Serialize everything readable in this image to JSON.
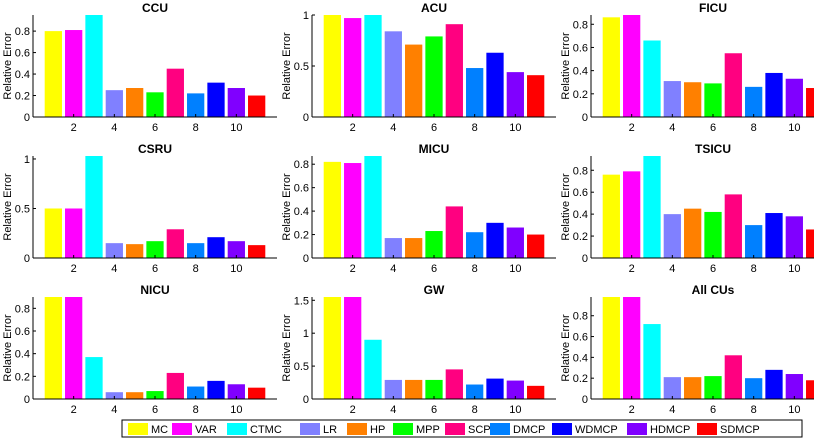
{
  "chart_data": {
    "type": "bar",
    "ylabel": "Relative Error",
    "categories": [
      "MC",
      "VAR",
      "CTMC",
      "LR",
      "HP",
      "MPP",
      "SCP",
      "DMCP",
      "WDMCP",
      "HDMCP",
      "SDMCP"
    ],
    "colors": [
      "#ffff00",
      "#ff00ff",
      "#00ffff",
      "#8080ff",
      "#ff8000",
      "#00ff00",
      "#ff0080",
      "#0080ff",
      "#0000ff",
      "#8000ff",
      "#ff0000"
    ],
    "x_tick_labels": [
      "2",
      "4",
      "6",
      "8",
      "10"
    ],
    "legend_position": "bottom",
    "panels": [
      {
        "title": "CCU",
        "ylim": [
          0,
          0.95
        ],
        "yticks": [
          0,
          0.2,
          0.4,
          0.6,
          0.8
        ],
        "ytick_labels": [
          "0",
          "0.2",
          "0.4",
          "0.6",
          "0.8"
        ],
        "values": [
          0.8,
          0.81,
          0.95,
          0.25,
          0.27,
          0.23,
          0.45,
          0.22,
          0.32,
          0.27,
          0.2
        ]
      },
      {
        "title": "ACU",
        "ylim": [
          0,
          1.0
        ],
        "yticks": [
          0,
          0.5,
          1
        ],
        "ytick_labels": [
          "0",
          "0.5",
          "1"
        ],
        "values": [
          1.0,
          0.97,
          1.0,
          0.84,
          0.71,
          0.79,
          0.91,
          0.48,
          0.63,
          0.44,
          0.41
        ]
      },
      {
        "title": "FICU",
        "ylim": [
          0,
          0.88
        ],
        "yticks": [
          0,
          0.2,
          0.4,
          0.6,
          0.8
        ],
        "ytick_labels": [
          "0",
          "0.2",
          "0.4",
          "0.6",
          "0.8"
        ],
        "values": [
          0.86,
          0.88,
          0.66,
          0.31,
          0.3,
          0.29,
          0.55,
          0.26,
          0.38,
          0.33,
          0.25
        ]
      },
      {
        "title": "CSRU",
        "ylim": [
          0,
          1.03
        ],
        "yticks": [
          0,
          0.5,
          1
        ],
        "ytick_labels": [
          "0",
          "0.5",
          "1"
        ],
        "values": [
          0.5,
          0.5,
          1.03,
          0.15,
          0.14,
          0.17,
          0.29,
          0.15,
          0.21,
          0.17,
          0.13
        ]
      },
      {
        "title": "MICU",
        "ylim": [
          0,
          0.87
        ],
        "yticks": [
          0,
          0.2,
          0.4,
          0.6,
          0.8
        ],
        "ytick_labels": [
          "0",
          "0.2",
          "0.4",
          "0.6",
          "0.8"
        ],
        "values": [
          0.82,
          0.81,
          0.87,
          0.17,
          0.17,
          0.23,
          0.44,
          0.22,
          0.3,
          0.26,
          0.2
        ]
      },
      {
        "title": "TSICU",
        "ylim": [
          0,
          0.93
        ],
        "yticks": [
          0,
          0.2,
          0.4,
          0.6,
          0.8
        ],
        "ytick_labels": [
          "0",
          "0.2",
          "0.4",
          "0.6",
          "0.8"
        ],
        "values": [
          0.76,
          0.79,
          0.93,
          0.4,
          0.45,
          0.42,
          0.58,
          0.3,
          0.41,
          0.38,
          0.26
        ]
      },
      {
        "title": "NICU",
        "ylim": [
          0,
          0.9
        ],
        "yticks": [
          0,
          0.2,
          0.4,
          0.6,
          0.8
        ],
        "ytick_labels": [
          "0",
          "0.2",
          "0.4",
          "0.6",
          "0.8"
        ],
        "values": [
          0.9,
          0.9,
          0.37,
          0.06,
          0.06,
          0.07,
          0.23,
          0.11,
          0.16,
          0.13,
          0.1
        ]
      },
      {
        "title": "GW",
        "ylim": [
          0,
          1.55
        ],
        "yticks": [
          0,
          0.5,
          1,
          1.5
        ],
        "ytick_labels": [
          "0",
          "0.5",
          "1",
          "1.5"
        ],
        "values": [
          1.55,
          1.55,
          0.9,
          0.29,
          0.29,
          0.29,
          0.45,
          0.22,
          0.31,
          0.28,
          0.2
        ]
      },
      {
        "title": "All  CUs",
        "ylim": [
          0,
          0.98
        ],
        "yticks": [
          0,
          0.2,
          0.4,
          0.6,
          0.8
        ],
        "ytick_labels": [
          "0",
          "0.2",
          "0.4",
          "0.6",
          "0.8"
        ],
        "values": [
          0.98,
          0.98,
          0.72,
          0.21,
          0.21,
          0.22,
          0.42,
          0.2,
          0.28,
          0.24,
          0.18
        ]
      }
    ]
  }
}
